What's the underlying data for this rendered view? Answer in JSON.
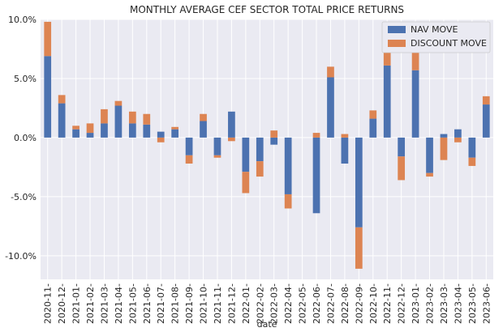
{
  "chart_data": {
    "type": "bar",
    "stacked": true,
    "title": "MONTHLY AVERAGE CEF SECTOR TOTAL PRICE RETURNS",
    "xlabel": "date",
    "ylabel": "",
    "ylim": [
      -12.0,
      10.0
    ],
    "yticks": [
      -10.0,
      -5.0,
      0.0,
      5.0,
      10.0
    ],
    "ytick_labels": [
      "-10.0%",
      "-5.0%",
      "0.0%",
      "5.0%",
      "10.0%"
    ],
    "grid": true,
    "legend_position": "top-right",
    "categories": [
      "2020-11-",
      "2020-12-",
      "2021-01-",
      "2021-02-",
      "2021-03-",
      "2021-04-",
      "2021-05-",
      "2021-06-",
      "2021-07-",
      "2021-08-",
      "2021-09-",
      "2021-10-",
      "2021-11-",
      "2021-12-",
      "2022-01-",
      "2022-02-",
      "2022-03-",
      "2022-04-",
      "2022-05-",
      "2022-06-",
      "2022-07-",
      "2022-08-",
      "2022-09-",
      "2022-10-",
      "2022-11-",
      "2022-12-",
      "2023-01-",
      "2023-02-",
      "2023-03-",
      "2023-04-",
      "2023-05-",
      "2023-06-"
    ],
    "series": [
      {
        "name": "NAV MOVE",
        "color": "#4c72b0",
        "values": [
          6.9,
          2.9,
          0.7,
          0.4,
          1.2,
          2.7,
          1.2,
          1.1,
          0.5,
          0.7,
          -1.5,
          1.4,
          -1.5,
          2.2,
          -2.9,
          -2.0,
          -0.6,
          -4.8,
          0.0,
          -6.4,
          5.1,
          -2.2,
          -7.6,
          1.6,
          6.1,
          -1.6,
          5.7,
          -3.0,
          0.3,
          0.7,
          -1.7,
          2.8
        ]
      },
      {
        "name": "DISCOUNT MOVE",
        "color": "#dd8452",
        "values": [
          2.9,
          0.7,
          0.3,
          0.8,
          1.2,
          0.4,
          1.0,
          0.9,
          -0.4,
          0.2,
          -0.7,
          0.6,
          -0.2,
          -0.3,
          -1.8,
          -1.3,
          0.6,
          -1.2,
          0.0,
          0.4,
          0.9,
          0.3,
          -3.5,
          0.7,
          1.2,
          -2.0,
          2.2,
          -0.3,
          -1.9,
          -0.4,
          -0.7,
          0.7
        ]
      }
    ]
  }
}
